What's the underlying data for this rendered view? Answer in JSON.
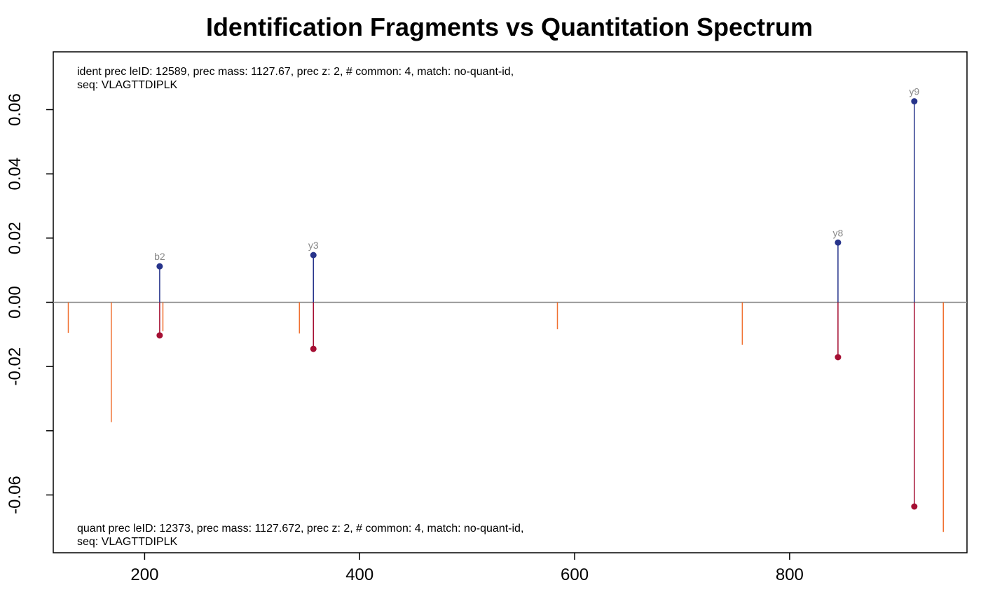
{
  "chart_data": {
    "type": "stem",
    "title": "Identification Fragments vs Quantitation Spectrum",
    "xlabel": "",
    "ylabel": "",
    "xlim": [
      115,
      965
    ],
    "ylim": [
      -0.078,
      0.078
    ],
    "x_ticks": [
      200,
      400,
      600,
      800
    ],
    "x_tick_labels": [
      "200",
      "400",
      "600",
      "800"
    ],
    "y_ticks": [
      -0.06,
      -0.04,
      -0.02,
      0.0,
      0.02,
      0.04,
      0.06
    ],
    "y_tick_labels": [
      "-0.06",
      "",
      "-0.02",
      "0.00",
      "0.02",
      "0.04",
      "0.06"
    ],
    "zero_line_color": "#888888",
    "annotation_top": [
      "ident prec leID: 12589, prec mass: 1127.67, prec z: 2, # common: 4, match: no-quant-id,",
      "seq: VLAGTTDIPLK"
    ],
    "annotation_bottom": [
      "quant prec leID: 12373, prec mass: 1127.672, prec z: 2, # common: 4, match: no-quant-id,",
      "seq: VLAGTTDIPLK"
    ],
    "series": [
      {
        "role": "identification",
        "color": "#27348b",
        "points": [
          {
            "x": 214,
            "y": 0.0112,
            "label": "b2"
          },
          {
            "x": 357,
            "y": 0.0147,
            "label": "y3"
          },
          {
            "x": 845,
            "y": 0.0186,
            "label": "y8"
          },
          {
            "x": 916,
            "y": 0.0626,
            "label": "y9"
          }
        ]
      },
      {
        "role": "quantitation-matched",
        "color": "#a50f33",
        "points": [
          {
            "x": 214,
            "y": -0.0103
          },
          {
            "x": 357,
            "y": -0.0145
          },
          {
            "x": 845,
            "y": -0.0171
          },
          {
            "x": 916,
            "y": -0.0636
          }
        ]
      },
      {
        "role": "quantitation-unmatched",
        "color": "#f07030",
        "points": [
          {
            "x": 129,
            "y": -0.0095
          },
          {
            "x": 169,
            "y": -0.0373
          },
          {
            "x": 217,
            "y": -0.009
          },
          {
            "x": 344,
            "y": -0.0097
          },
          {
            "x": 584,
            "y": -0.0084
          },
          {
            "x": 756,
            "y": -0.0132
          },
          {
            "x": 943,
            "y": -0.0715
          }
        ]
      }
    ]
  }
}
